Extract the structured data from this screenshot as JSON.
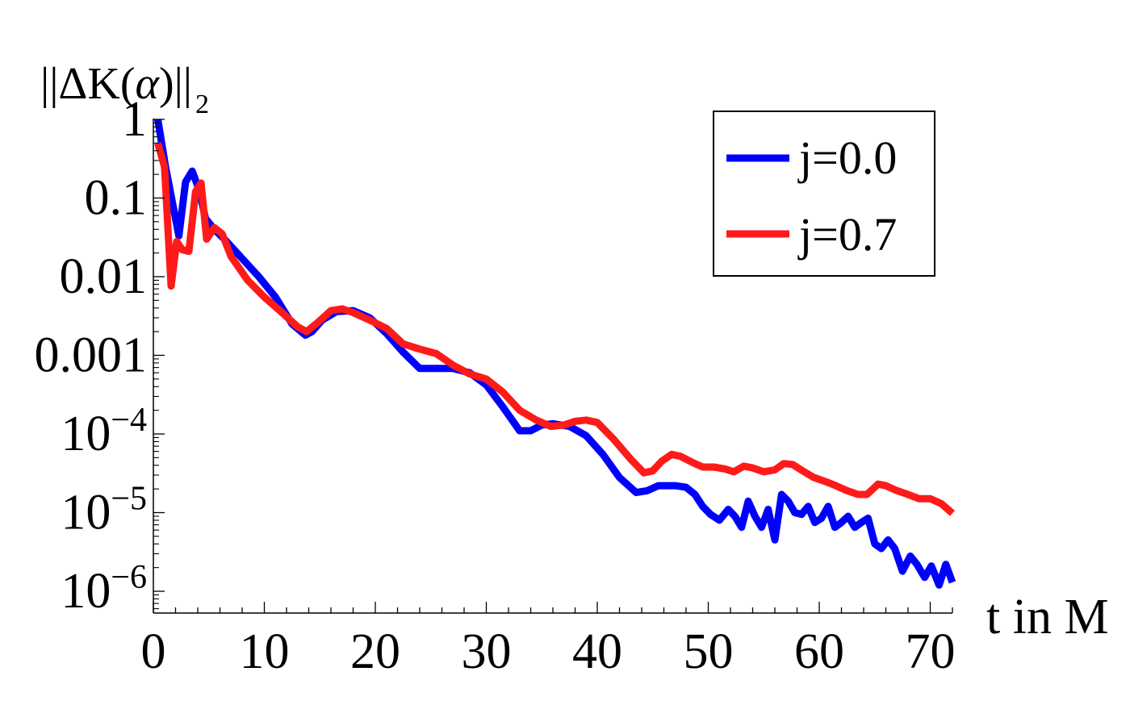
{
  "chart_data": {
    "type": "line",
    "title": "",
    "ylabel_prefix": "||ΔK(",
    "ylabel_alpha": "α",
    "ylabel_suffix": ")||",
    "ylabel_subscript": "2",
    "xlabel": "t in M",
    "yscale": "log",
    "xlim": [
      0,
      72
    ],
    "ylim_log10": [
      -6.3,
      0
    ],
    "legend_position": "top-right",
    "x_ticks": [
      0,
      10,
      20,
      30,
      40,
      50,
      60,
      70
    ],
    "x_tick_labels": [
      "0",
      "10",
      "20",
      "30",
      "40",
      "50",
      "60",
      "70"
    ],
    "y_ticks_log10": [
      0,
      -1,
      -2,
      -3,
      -4,
      -5,
      -6
    ],
    "y_tick_labels": [
      {
        "text": "1",
        "exp": ""
      },
      {
        "text": "0.1",
        "exp": ""
      },
      {
        "text": "0.01",
        "exp": ""
      },
      {
        "text": "0.001",
        "exp": ""
      },
      {
        "text": "10",
        "exp": "−4"
      },
      {
        "text": "10",
        "exp": "−5"
      },
      {
        "text": "10",
        "exp": "−6"
      }
    ],
    "series": [
      {
        "name": "j=0.0",
        "color": "#0000ff",
        "x": [
          0.4,
          1.1,
          1.7,
          2.3,
          2.9,
          3.5,
          4.1,
          4.7,
          5.5,
          6.5,
          8.0,
          9.5,
          11.0,
          12.5,
          13.7,
          14.3,
          15.2,
          16.5,
          18.0,
          19.5,
          21.0,
          22.5,
          24.0,
          25.5,
          27.0,
          28.5,
          30.0,
          31.5,
          33.0,
          34.0,
          35.0,
          36.0,
          37.5,
          39.0,
          40.5,
          42.0,
          43.5,
          44.5,
          45.5,
          47.0,
          48.0,
          48.8,
          49.5,
          50.2,
          51.0,
          51.8,
          52.4,
          53.0,
          53.6,
          54.2,
          54.8,
          55.4,
          56.0,
          56.6,
          57.2,
          57.8,
          58.4,
          59.0,
          59.6,
          60.2,
          60.8,
          61.4,
          62.0,
          62.6,
          63.2,
          63.8,
          64.4,
          65.0,
          65.6,
          66.2,
          66.8,
          67.5,
          68.2,
          68.8,
          69.5,
          70.1,
          70.8,
          71.4,
          72.0
        ],
        "y": [
          1.0,
          0.25,
          0.09,
          0.033,
          0.16,
          0.22,
          0.13,
          0.055,
          0.04,
          0.029,
          0.017,
          0.01,
          0.0055,
          0.0025,
          0.0018,
          0.002,
          0.0028,
          0.0036,
          0.0037,
          0.003,
          0.0019,
          0.0011,
          0.00068,
          0.00068,
          0.00068,
          0.0006,
          0.00042,
          0.00022,
          0.00011,
          0.00011,
          0.00013,
          0.000135,
          0.000125,
          9.5e-05,
          5.5e-05,
          2.8e-05,
          1.8e-05,
          1.9e-05,
          2.2e-05,
          2.2e-05,
          2.1e-05,
          1.7e-05,
          1.2e-05,
          9.5e-06,
          8e-06,
          1.1e-05,
          9e-06,
          6.5e-06,
          1.4e-05,
          9e-06,
          6.5e-06,
          1.1e-05,
          4.5e-06,
          1.7e-05,
          1.4e-05,
          1e-05,
          9.5e-06,
          1.2e-05,
          7.5e-06,
          8.5e-06,
          1.2e-05,
          6.5e-06,
          7.5e-06,
          9e-06,
          6.5e-06,
          7.5e-06,
          8.5e-06,
          4e-06,
          3.5e-06,
          4.5e-06,
          3.5e-06,
          1.8e-06,
          2.8e-06,
          2.2e-06,
          1.5e-06,
          2.1e-06,
          1.2e-06,
          2.2e-06,
          1.3e-06
        ]
      },
      {
        "name": "j=0.7",
        "color": "#ff1a1a",
        "x": [
          0.4,
          1.0,
          1.6,
          2.1,
          2.6,
          3.2,
          3.8,
          4.3,
          4.8,
          5.5,
          6.2,
          7.0,
          8.5,
          10.0,
          11.5,
          13.0,
          13.8,
          14.8,
          16.0,
          17.0,
          18.0,
          19.5,
          21.0,
          22.5,
          24.0,
          25.5,
          27.0,
          28.5,
          30.0,
          31.5,
          33.0,
          34.5,
          35.8,
          37.0,
          38.0,
          39.0,
          40.0,
          41.5,
          43.0,
          44.2,
          45.0,
          45.8,
          46.7,
          47.5,
          48.5,
          49.5,
          50.5,
          51.5,
          52.3,
          53.2,
          54.0,
          55.0,
          56.0,
          56.8,
          57.6,
          58.5,
          59.5,
          60.5,
          61.5,
          62.5,
          63.5,
          64.3,
          65.3,
          66.0,
          67.0,
          68.0,
          69.0,
          70.0,
          71.0,
          72.0
        ],
        "y": [
          0.5,
          0.25,
          0.0076,
          0.028,
          0.022,
          0.021,
          0.12,
          0.155,
          0.03,
          0.042,
          0.035,
          0.018,
          0.009,
          0.0055,
          0.0036,
          0.0023,
          0.002,
          0.0026,
          0.0037,
          0.0039,
          0.0035,
          0.0028,
          0.0022,
          0.0014,
          0.0012,
          0.00105,
          0.00075,
          0.00058,
          0.0005,
          0.00034,
          0.0002,
          0.00015,
          0.000125,
          0.00013,
          0.000145,
          0.00015,
          0.00014,
          8.5e-05,
          4.8e-05,
          3.2e-05,
          3.4e-05,
          4.5e-05,
          5.5e-05,
          5.2e-05,
          4.4e-05,
          3.8e-05,
          3.8e-05,
          3.6e-05,
          3.3e-05,
          3.9e-05,
          3.7e-05,
          3.3e-05,
          3.5e-05,
          4.2e-05,
          4.1e-05,
          3.4e-05,
          2.8e-05,
          2.5e-05,
          2.2e-05,
          1.9e-05,
          1.7e-05,
          1.7e-05,
          2.3e-05,
          2.2e-05,
          1.9e-05,
          1.7e-05,
          1.5e-05,
          1.5e-05,
          1.3e-05,
          9.8e-06
        ]
      }
    ]
  }
}
